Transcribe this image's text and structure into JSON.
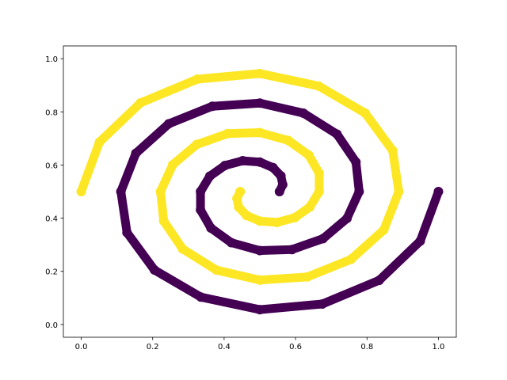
{
  "chart_data": {
    "type": "scatter",
    "xlim": [
      -0.05,
      1.05
    ],
    "ylim": [
      -0.048,
      1.048
    ],
    "xticks": [
      {
        "value": 0,
        "label": "0.0"
      },
      {
        "value": 0.2,
        "label": "0.2"
      },
      {
        "value": 0.4,
        "label": "0.4"
      },
      {
        "value": 0.6,
        "label": "0.6"
      },
      {
        "value": 0.8,
        "label": "0.8"
      },
      {
        "value": 1,
        "label": "1.0"
      }
    ],
    "yticks": [
      {
        "value": 0,
        "label": "0.0"
      },
      {
        "value": 0.2,
        "label": "0.2"
      },
      {
        "value": 0.4,
        "label": "0.4"
      },
      {
        "value": 0.6,
        "label": "0.6"
      },
      {
        "value": 0.8,
        "label": "0.8"
      },
      {
        "value": 1,
        "label": "1.0"
      }
    ],
    "grid": false,
    "series": [
      {
        "color": "#440154",
        "x": [
          0.555,
          0.564,
          0.559,
          0.537,
          0.5,
          0.452,
          0.402,
          0.36,
          0.334,
          0.334,
          0.363,
          0.42,
          0.5,
          0.59,
          0.677,
          0.744,
          0.778,
          0.769,
          0.716,
          0.622,
          0.5,
          0.367,
          0.245,
          0.153,
          0.111,
          0.128,
          0.205,
          0.335,
          0.5,
          0.675,
          0.834,
          0.949,
          1.0
        ],
        "values": [
          0.5,
          0.526,
          0.559,
          0.59,
          0.611,
          0.616,
          0.598,
          0.558,
          0.5,
          0.431,
          0.363,
          0.308,
          0.278,
          0.282,
          0.323,
          0.399,
          0.5,
          0.611,
          0.716,
          0.795,
          0.833,
          0.821,
          0.755,
          0.644,
          0.5,
          0.346,
          0.205,
          0.103,
          0.056,
          0.077,
          0.166,
          0.314,
          0.5
        ]
      },
      {
        "color": "#fde725",
        "x": [
          0.445,
          0.436,
          0.441,
          0.463,
          0.5,
          0.548,
          0.598,
          0.64,
          0.666,
          0.666,
          0.637,
          0.58,
          0.5,
          0.41,
          0.323,
          0.256,
          0.222,
          0.231,
          0.284,
          0.378,
          0.5,
          0.633,
          0.755,
          0.847,
          0.889,
          0.872,
          0.795,
          0.665,
          0.5,
          0.325,
          0.166,
          0.051,
          0.0
        ],
        "values": [
          0.5,
          0.474,
          0.441,
          0.41,
          0.389,
          0.384,
          0.402,
          0.442,
          0.5,
          0.569,
          0.637,
          0.692,
          0.722,
          0.718,
          0.677,
          0.601,
          0.5,
          0.389,
          0.284,
          0.205,
          0.167,
          0.179,
          0.245,
          0.356,
          0.5,
          0.654,
          0.795,
          0.897,
          0.944,
          0.923,
          0.834,
          0.686,
          0.5
        ]
      }
    ]
  }
}
